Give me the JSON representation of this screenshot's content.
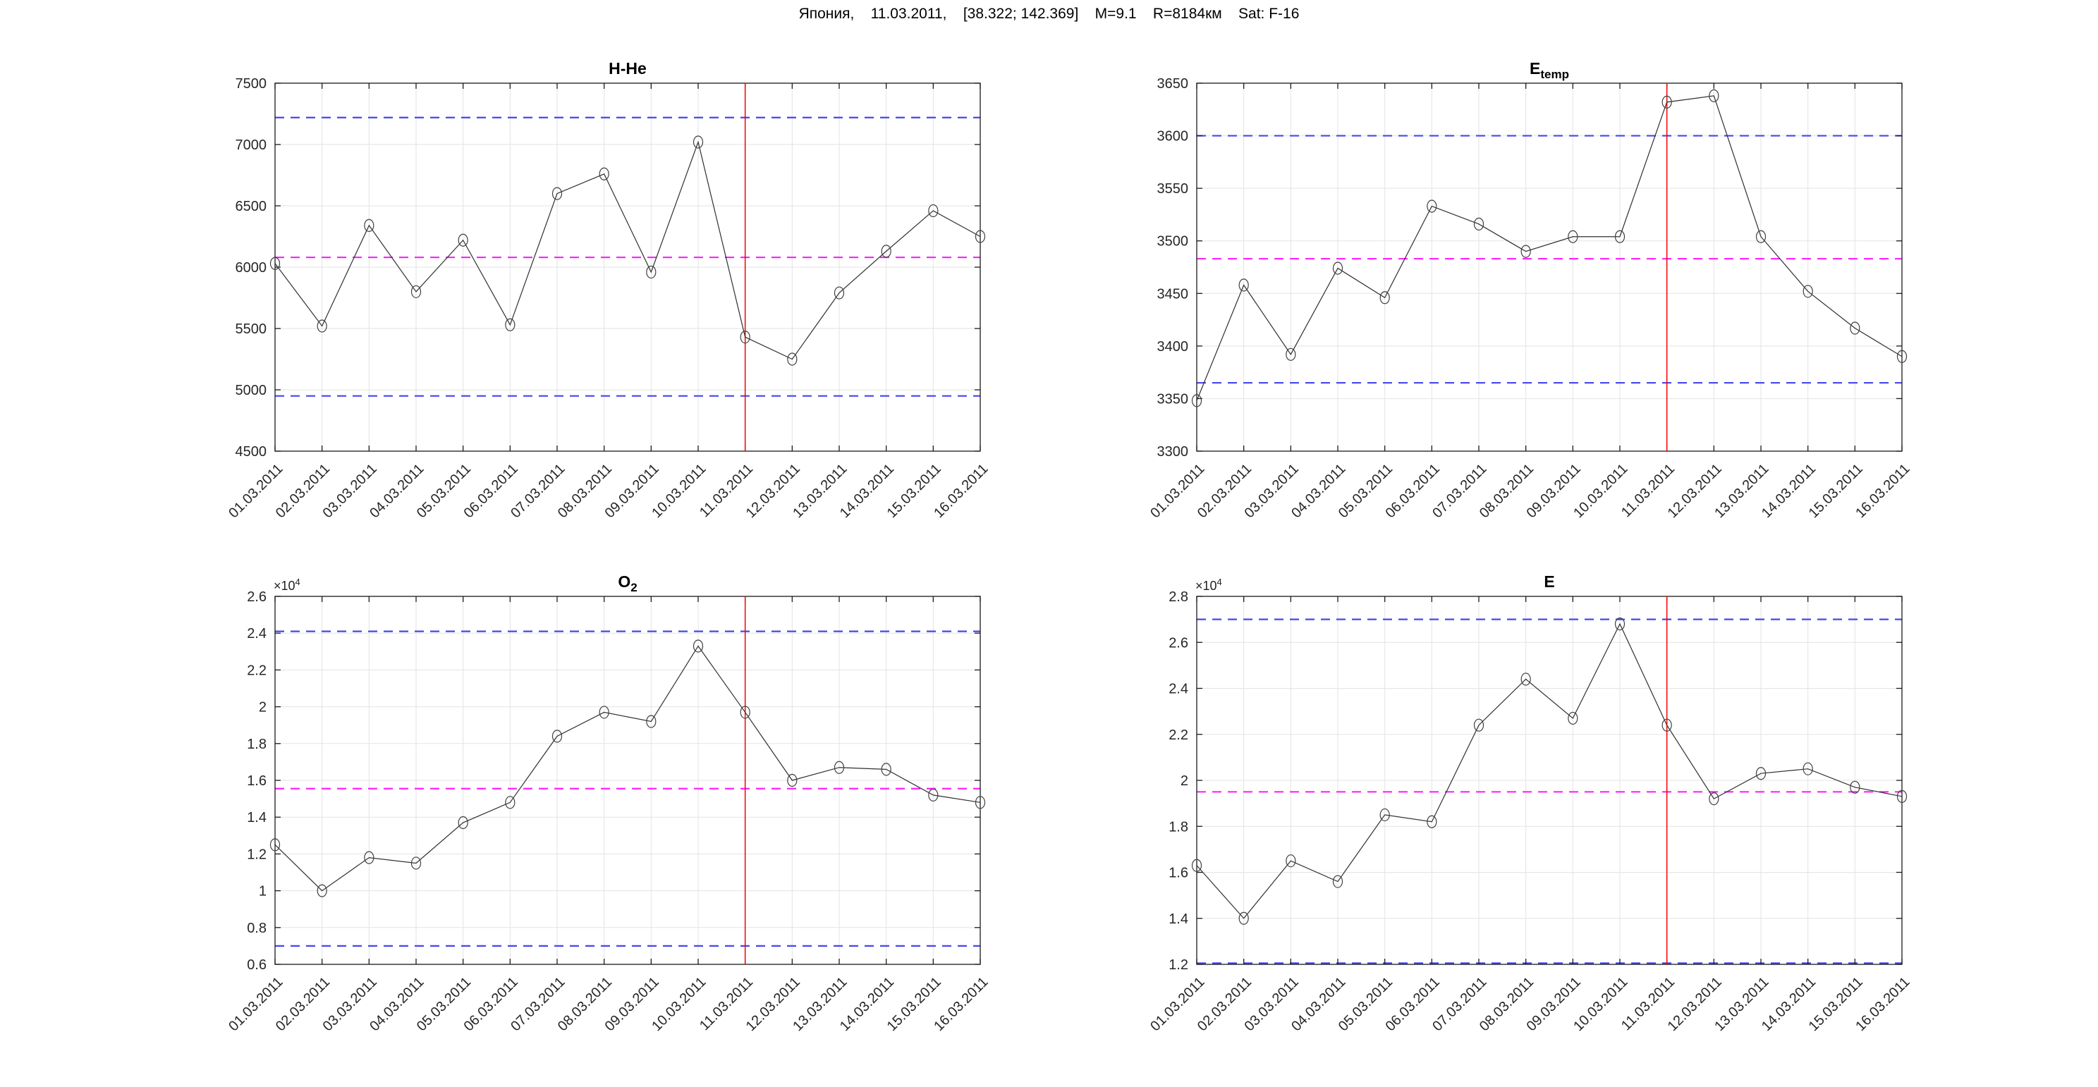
{
  "header": {
    "title": "Япония,    11.03.2011,    [38.322; 142.369]    M=9.1    R=8184км    Sat: F-16",
    "region": "Япония",
    "event_date": "11.03.2011",
    "coordinates": "[38.322; 142.369]",
    "magnitude": "M=9.1",
    "distance": "R=8184км",
    "satellite": "Sat: F-16"
  },
  "colors": {
    "series": "#303030",
    "marker": "#404040",
    "limit_dashed": "#4646f0",
    "mean_dashed": "#ff22ff",
    "event_line": "#f20000",
    "grid": "#e3e3e3",
    "axis": "#1a1a1a"
  },
  "chart_data": [
    {
      "type": "line",
      "title": "H-He",
      "title_main": "H-He",
      "title_sub": "",
      "y_exp_prefix": "",
      "y_exponent": "",
      "ylim": [
        4500,
        7500
      ],
      "ytick_step": 500,
      "grid": true,
      "marker": "circle",
      "event_x": "11.03.2011",
      "upper_limit": 7220,
      "lower_limit": 4950,
      "mean_line": 6080,
      "categories": [
        "01.03.2011",
        "02.03.2011",
        "03.03.2011",
        "04.03.2011",
        "05.03.2011",
        "06.03.2011",
        "07.03.2011",
        "08.03.2011",
        "09.03.2011",
        "10.03.2011",
        "11.03.2011",
        "12.03.2011",
        "13.03.2011",
        "14.03.2011",
        "15.03.2011",
        "16.03.2011"
      ],
      "values": [
        6030,
        5520,
        6340,
        5800,
        6220,
        5530,
        6600,
        6760,
        5960,
        7020,
        5430,
        5250,
        5790,
        6130,
        6460,
        6250
      ]
    },
    {
      "type": "line",
      "title": "Etemp",
      "title_main": "E",
      "title_sub": "temp",
      "y_exp_prefix": "",
      "y_exponent": "",
      "ylim": [
        3300,
        3650
      ],
      "ytick_step": 50,
      "grid": true,
      "marker": "circle",
      "event_x": "11.03.2011",
      "upper_limit": 3600,
      "lower_limit": 3365,
      "mean_line": 3483,
      "categories": [
        "01.03.2011",
        "02.03.2011",
        "03.03.2011",
        "04.03.2011",
        "05.03.2011",
        "06.03.2011",
        "07.03.2011",
        "08.03.2011",
        "09.03.2011",
        "10.03.2011",
        "11.03.2011",
        "12.03.2011",
        "13.03.2011",
        "14.03.2011",
        "15.03.2011",
        "16.03.2011"
      ],
      "values": [
        3348,
        3458,
        3392,
        3474,
        3446,
        3533,
        3516,
        3490,
        3504,
        3504,
        3632,
        3638,
        3504,
        3452,
        3417,
        3390
      ]
    },
    {
      "type": "line",
      "title": "O2",
      "title_main": "O",
      "title_sub": "2",
      "y_exp_prefix": "×10",
      "y_exponent": "4",
      "ylim": [
        0.6,
        2.6
      ],
      "ytick_step": 0.2,
      "grid": true,
      "marker": "circle",
      "event_x": "11.03.2011",
      "upper_limit": 2.41,
      "lower_limit": 0.7,
      "mean_line": 1.555,
      "categories": [
        "01.03.2011",
        "02.03.2011",
        "03.03.2011",
        "04.03.2011",
        "05.03.2011",
        "06.03.2011",
        "07.03.2011",
        "08.03.2011",
        "09.03.2011",
        "10.03.2011",
        "11.03.2011",
        "12.03.2011",
        "13.03.2011",
        "14.03.2011",
        "15.03.2011",
        "16.03.2011"
      ],
      "values": [
        1.25,
        1.0,
        1.18,
        1.15,
        1.37,
        1.48,
        1.84,
        1.97,
        1.92,
        2.33,
        1.97,
        1.6,
        1.67,
        1.66,
        1.52,
        1.48
      ]
    },
    {
      "type": "line",
      "title": "E",
      "title_main": "E",
      "title_sub": "",
      "y_exp_prefix": "×10",
      "y_exponent": "4",
      "ylim": [
        1.2,
        2.8
      ],
      "ytick_step": 0.2,
      "grid": true,
      "marker": "circle",
      "event_x": "11.03.2011",
      "upper_limit": 2.7,
      "lower_limit": 1.205,
      "mean_line": 1.95,
      "categories": [
        "01.03.2011",
        "02.03.2011",
        "03.03.2011",
        "04.03.2011",
        "05.03.2011",
        "06.03.2011",
        "07.03.2011",
        "08.03.2011",
        "09.03.2011",
        "10.03.2011",
        "11.03.2011",
        "12.03.2011",
        "13.03.2011",
        "14.03.2011",
        "15.03.2011",
        "16.03.2011"
      ],
      "values": [
        1.63,
        1.4,
        1.65,
        1.56,
        1.85,
        1.82,
        2.24,
        2.44,
        2.27,
        2.68,
        2.24,
        1.92,
        2.03,
        2.05,
        1.97,
        1.93
      ]
    }
  ]
}
